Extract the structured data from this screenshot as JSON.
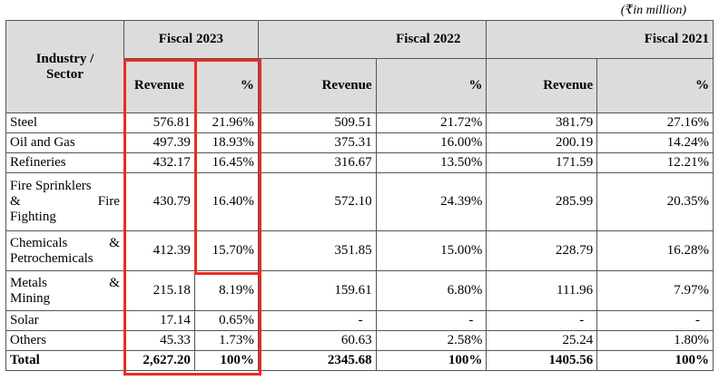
{
  "unit_note": "(₹in million)",
  "header": {
    "sector_label": "Industry / Sector",
    "fiscal_2023": "Fiscal 2023",
    "fiscal_2022": "Fiscal 2022",
    "fiscal_2021": "Fiscal 2021",
    "revenue": "Revenue",
    "percent": "%"
  },
  "rows": [
    {
      "sector": "Steel",
      "r23": "576.81",
      "p23": "21.96%",
      "r22": "509.51",
      "p22": "21.72%",
      "r21": "381.79",
      "p21": "27.16%"
    },
    {
      "sector": "Oil and Gas",
      "r23": "497.39",
      "p23": "18.93%",
      "r22": "375.31",
      "p22": "16.00%",
      "r21": "200.19",
      "p21": "14.24%"
    },
    {
      "sector": "Refineries",
      "r23": "432.17",
      "p23": "16.45%",
      "r22": "316.67",
      "p22": "13.50%",
      "r21": "171.59",
      "p21": "12.21%"
    },
    {
      "sector_parts": [
        "Fire Sprinklers",
        "&",
        "Fire",
        "Fighting"
      ],
      "r23": "430.79",
      "p23": "16.40%",
      "r22": "572.10",
      "p22": "24.39%",
      "r21": "285.99",
      "p21": "20.35%"
    },
    {
      "sector_parts": [
        "Chemicals",
        "&",
        "Petrochemicals"
      ],
      "r23": "412.39",
      "p23": "15.70%",
      "r22": "351.85",
      "p22": "15.00%",
      "r21": "228.79",
      "p21": "16.28%"
    },
    {
      "sector_parts": [
        "Metals",
        "&",
        "Mining"
      ],
      "r23": "215.18",
      "p23": "8.19%",
      "r22": "159.61",
      "p22": "6.80%",
      "r21": "111.96",
      "p21": "7.97%"
    },
    {
      "sector": "Solar",
      "r23": "17.14",
      "p23": "0.65%",
      "r22": "-",
      "p22": "-",
      "r21": "-",
      "p21": "-"
    },
    {
      "sector": "Others",
      "r23": "45.33",
      "p23": "1.73%",
      "r22": "60.63",
      "p22": "2.58%",
      "r21": "25.24",
      "p21": "1.80%"
    }
  ],
  "total": {
    "sector": "Total",
    "r23": "2,627.20",
    "p23": "100%",
    "r22": "2345.68",
    "p22": "100%",
    "r21": "1405.56",
    "p21": "100%"
  },
  "highlight_color": "#ee2a24"
}
